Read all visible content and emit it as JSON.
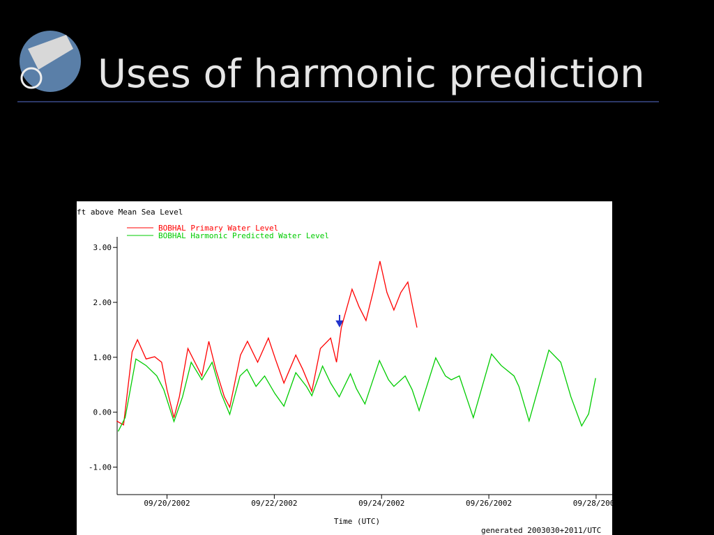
{
  "slide": {
    "title": "Uses of harmonic prediction"
  },
  "chart_data": {
    "type": "line",
    "ylabel": "ft above Mean Sea Level",
    "xlabel": "Time (UTC)",
    "footnote": "generated 2003030+2011/UTC",
    "xlim": [
      19.07,
      28.3
    ],
    "xticks": [
      {
        "value": 20,
        "label": "09/20/2002"
      },
      {
        "value": 22,
        "label": "09/22/2002"
      },
      {
        "value": 24,
        "label": "09/24/2002"
      },
      {
        "value": 26,
        "label": "09/26/2002"
      },
      {
        "value": 28,
        "label": "09/28/2002"
      }
    ],
    "ylim": [
      -1.5,
      3.7
    ],
    "yticks": [
      {
        "value": -1,
        "label": "-1.00"
      },
      {
        "value": 0,
        "label": "0.00"
      },
      {
        "value": 1,
        "label": "1.00"
      },
      {
        "value": 2,
        "label": "2.00"
      },
      {
        "value": 3,
        "label": "3.00"
      }
    ],
    "series": [
      {
        "name": "BOBHAL Primary Water Level",
        "color": "#ff0000",
        "x": [
          19.06,
          19.19,
          19.35,
          19.45,
          19.61,
          19.77,
          19.9,
          20.0,
          20.13,
          20.23,
          20.39,
          20.52,
          20.65,
          20.78,
          20.91,
          21.07,
          21.17,
          21.37,
          21.5,
          21.69,
          21.89,
          22.02,
          22.18,
          22.4,
          22.53,
          22.7,
          22.86,
          23.05,
          23.16,
          23.25,
          23.45,
          23.58,
          23.71,
          23.84,
          23.97,
          24.1,
          24.23,
          24.36,
          24.49,
          24.58,
          24.66
        ],
        "values": [
          -0.16,
          -0.23,
          1.1,
          1.32,
          0.97,
          1.01,
          0.91,
          0.41,
          -0.1,
          0.28,
          1.16,
          0.91,
          0.66,
          1.29,
          0.78,
          0.28,
          0.09,
          1.04,
          1.29,
          0.91,
          1.35,
          0.97,
          0.53,
          1.04,
          0.78,
          0.38,
          1.16,
          1.35,
          0.91,
          1.54,
          2.24,
          1.92,
          1.67,
          2.18,
          2.75,
          2.18,
          1.86,
          2.18,
          2.37,
          1.92,
          1.54
        ]
      },
      {
        "name": "BOBHAL Harmonic Predicted Water Level",
        "color": "#00cc00",
        "x": [
          19.09,
          19.22,
          19.42,
          19.61,
          19.81,
          19.94,
          20.13,
          20.29,
          20.45,
          20.65,
          20.84,
          21.01,
          21.17,
          21.36,
          21.49,
          21.66,
          21.82,
          22.01,
          22.18,
          22.4,
          22.6,
          22.7,
          22.9,
          23.05,
          23.21,
          23.42,
          23.53,
          23.69,
          23.96,
          24.13,
          24.23,
          24.44,
          24.57,
          24.7,
          25.01,
          25.19,
          25.3,
          25.45,
          25.58,
          25.71,
          26.05,
          26.23,
          26.47,
          26.56,
          26.75,
          27.12,
          27.34,
          27.53,
          27.73,
          27.86,
          27.99
        ],
        "values": [
          -0.35,
          -0.1,
          0.97,
          0.85,
          0.66,
          0.41,
          -0.17,
          0.28,
          0.91,
          0.59,
          0.91,
          0.34,
          -0.04,
          0.66,
          0.78,
          0.47,
          0.66,
          0.34,
          0.11,
          0.72,
          0.47,
          0.3,
          0.84,
          0.53,
          0.28,
          0.7,
          0.43,
          0.15,
          0.94,
          0.59,
          0.47,
          0.66,
          0.41,
          0.03,
          0.99,
          0.66,
          0.59,
          0.66,
          0.28,
          -0.1,
          1.06,
          0.85,
          0.66,
          0.47,
          -0.16,
          1.13,
          0.91,
          0.28,
          -0.25,
          -0.03,
          0.62
        ]
      }
    ]
  }
}
